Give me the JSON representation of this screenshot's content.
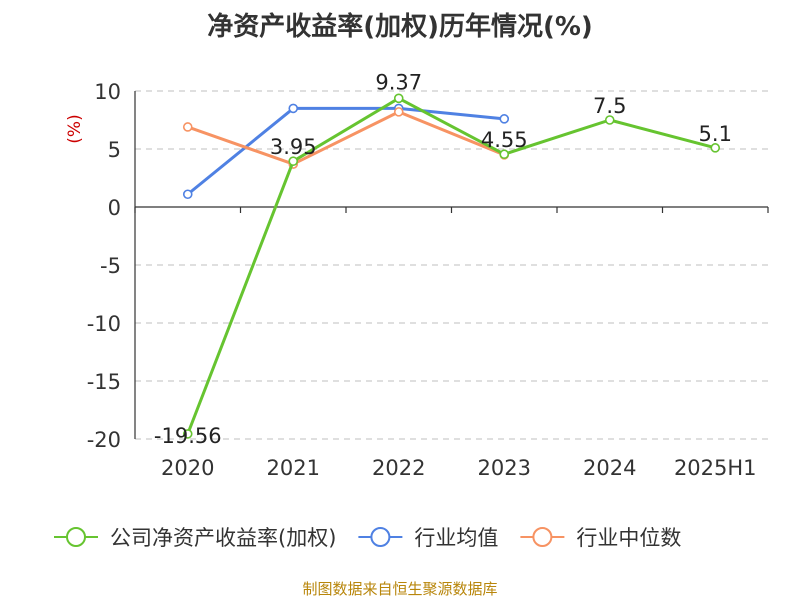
{
  "chart_data": {
    "type": "line",
    "title": "净资产收益率(加权)历年情况(%)",
    "ylabel": "(%)",
    "xlabel": "",
    "ylim": [
      -20,
      10
    ],
    "yticks": [
      10,
      5,
      0,
      -5,
      -10,
      -15,
      -20
    ],
    "categories": [
      "2020",
      "2021",
      "2022",
      "2023",
      "2024",
      "2025H1"
    ],
    "grid": true,
    "legend_position": "bottom",
    "series": [
      {
        "name": "公司净资产收益率(加权)",
        "color": "#66c430",
        "values": [
          -19.56,
          3.95,
          9.37,
          4.55,
          7.5,
          5.1
        ],
        "labels": [
          "-19.56",
          "3.95",
          "9.37",
          "4.55",
          "7.5",
          "5.1"
        ]
      },
      {
        "name": "行业均值",
        "color": "#4f81e3",
        "values": [
          1.1,
          8.5,
          8.5,
          7.6,
          null,
          null
        ]
      },
      {
        "name": "行业中位数",
        "color": "#f79363",
        "values": [
          6.9,
          3.7,
          8.2,
          4.5,
          null,
          null
        ]
      }
    ]
  },
  "source_text": "制图数据来自恒生聚源数据库"
}
